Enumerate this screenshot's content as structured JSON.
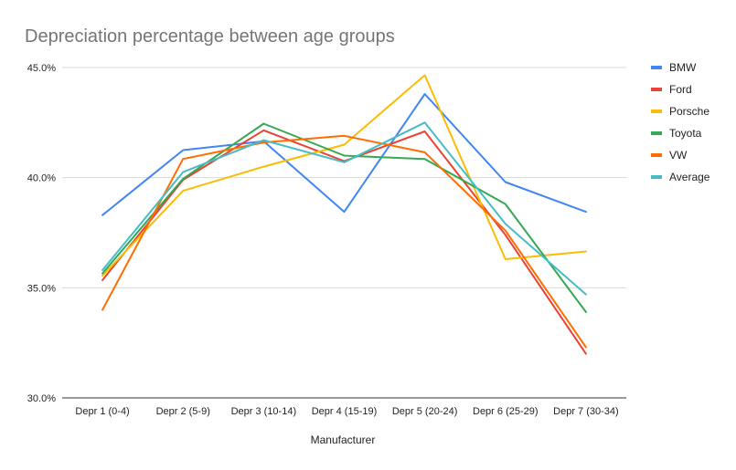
{
  "chart_data": {
    "type": "line",
    "title": "Depreciation percentage between age groups",
    "xlabel": "Manufacturer",
    "ylabel": "",
    "categories": [
      "Depr 1 (0-4)",
      "Depr 2 (5-9)",
      "Depr 3 (10-14)",
      "Depr 4 (15-19)",
      "Depr 5 (20-24)",
      "Depr 6 (25-29)",
      "Depr 7 (30-34)"
    ],
    "y_ticks": [
      "30.0%",
      "35.0%",
      "40.0%",
      "45.0%"
    ],
    "ylim": [
      30,
      45
    ],
    "grid": true,
    "legend_position": "right",
    "series": [
      {
        "name": "BMW",
        "color": "#4285f4",
        "values": [
          38.3,
          41.25,
          41.65,
          38.45,
          43.8,
          39.8,
          38.45
        ]
      },
      {
        "name": "Ford",
        "color": "#ea4335",
        "values": [
          35.35,
          39.9,
          42.15,
          40.75,
          42.1,
          37.4,
          32.0
        ]
      },
      {
        "name": "Porsche",
        "color": "#fbbc04",
        "values": [
          35.55,
          39.4,
          40.5,
          41.5,
          44.65,
          36.3,
          36.65
        ]
      },
      {
        "name": "Toyota",
        "color": "#34a853",
        "values": [
          35.65,
          39.95,
          42.45,
          41.0,
          40.85,
          38.8,
          33.9
        ]
      },
      {
        "name": "VW",
        "color": "#ff6d01",
        "values": [
          34.0,
          40.85,
          41.6,
          41.9,
          41.15,
          37.6,
          32.3
        ]
      },
      {
        "name": "Average",
        "color": "#46bdc6",
        "values": [
          35.8,
          40.25,
          41.7,
          40.7,
          42.5,
          37.9,
          34.7
        ]
      }
    ]
  }
}
